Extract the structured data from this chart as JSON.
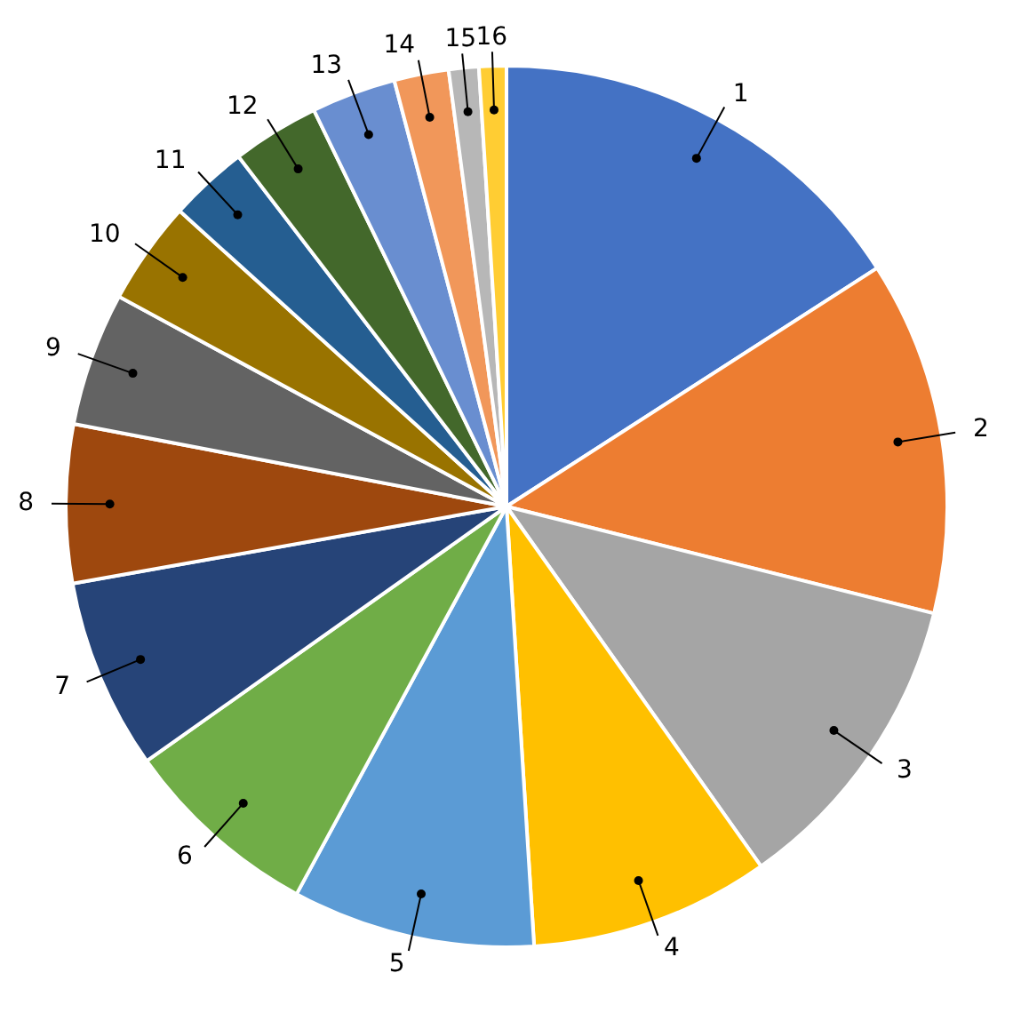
{
  "chart_data": {
    "type": "pie",
    "categories": [
      "1",
      "2",
      "3",
      "4",
      "5",
      "6",
      "7",
      "8",
      "9",
      "10",
      "11",
      "12",
      "13",
      "14",
      "15",
      "16"
    ],
    "values": [
      15.9,
      13.0,
      11.3,
      8.8,
      8.9,
      7.3,
      7.0,
      5.8,
      4.9,
      3.8,
      2.9,
      3.2,
      3.1,
      2.0,
      1.1,
      1.0
    ],
    "colors": [
      "#4472c4",
      "#ed7d31",
      "#a5a5a5",
      "#ffc000",
      "#5b9bd5",
      "#70ad47",
      "#264478",
      "#9e480e",
      "#636363",
      "#997300",
      "#255e91",
      "#43682b",
      "#698ed0",
      "#f1975a",
      "#b7b7b7",
      "#ffcd33"
    ],
    "legend": false
  }
}
